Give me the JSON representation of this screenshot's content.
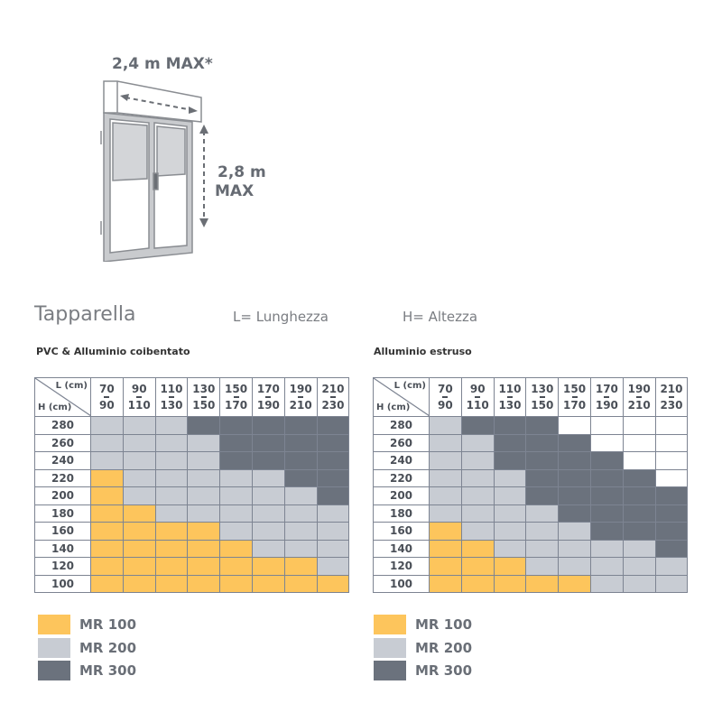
{
  "diagram": {
    "width_label": "2,4 m MAX*",
    "height_label_1": "2,8 m",
    "height_label_2": "MAX"
  },
  "title": "Tapparella",
  "l_def": "L= Lunghezza",
  "h_def": "H= Altezza",
  "colors": {
    "MR 100": "#fdc55c",
    "MR 200": "#c8ccd3",
    "MR 300": "#6b727d",
    "none": "#ffffff"
  },
  "columns": [
    [
      "70",
      "90"
    ],
    [
      "90",
      "110"
    ],
    [
      "110",
      "130"
    ],
    [
      "130",
      "150"
    ],
    [
      "150",
      "170"
    ],
    [
      "170",
      "190"
    ],
    [
      "190",
      "210"
    ],
    [
      "210",
      "230"
    ]
  ],
  "rows": [
    "280",
    "260",
    "240",
    "220",
    "200",
    "180",
    "160",
    "140",
    "120",
    "100"
  ],
  "corner": {
    "l": "L (cm)",
    "h": "H (cm)"
  },
  "tables": [
    {
      "title": "PVC & Alluminio coibentato",
      "grid": [
        [
          "MR 200",
          "MR 200",
          "MR 200",
          "MR 300",
          "MR 300",
          "MR 300",
          "MR 300",
          "MR 300"
        ],
        [
          "MR 200",
          "MR 200",
          "MR 200",
          "MR 200",
          "MR 300",
          "MR 300",
          "MR 300",
          "MR 300"
        ],
        [
          "MR 200",
          "MR 200",
          "MR 200",
          "MR 200",
          "MR 300",
          "MR 300",
          "MR 300",
          "MR 300"
        ],
        [
          "MR 100",
          "MR 200",
          "MR 200",
          "MR 200",
          "MR 200",
          "MR 200",
          "MR 300",
          "MR 300"
        ],
        [
          "MR 100",
          "MR 200",
          "MR 200",
          "MR 200",
          "MR 200",
          "MR 200",
          "MR 200",
          "MR 300"
        ],
        [
          "MR 100",
          "MR 100",
          "MR 200",
          "MR 200",
          "MR 200",
          "MR 200",
          "MR 200",
          "MR 200"
        ],
        [
          "MR 100",
          "MR 100",
          "MR 100",
          "MR 100",
          "MR 200",
          "MR 200",
          "MR 200",
          "MR 200"
        ],
        [
          "MR 100",
          "MR 100",
          "MR 100",
          "MR 100",
          "MR 100",
          "MR 200",
          "MR 200",
          "MR 200"
        ],
        [
          "MR 100",
          "MR 100",
          "MR 100",
          "MR 100",
          "MR 100",
          "MR 100",
          "MR 100",
          "MR 200"
        ],
        [
          "MR 100",
          "MR 100",
          "MR 100",
          "MR 100",
          "MR 100",
          "MR 100",
          "MR 100",
          "MR 100"
        ]
      ]
    },
    {
      "title": "Alluminio estruso",
      "grid": [
        [
          "MR 200",
          "MR 300",
          "MR 300",
          "MR 300",
          "none",
          "none",
          "none",
          "none"
        ],
        [
          "MR 200",
          "MR 200",
          "MR 300",
          "MR 300",
          "MR 300",
          "none",
          "none",
          "none"
        ],
        [
          "MR 200",
          "MR 200",
          "MR 300",
          "MR 300",
          "MR 300",
          "MR 300",
          "none",
          "none"
        ],
        [
          "MR 200",
          "MR 200",
          "MR 200",
          "MR 300",
          "MR 300",
          "MR 300",
          "MR 300",
          "none"
        ],
        [
          "MR 200",
          "MR 200",
          "MR 200",
          "MR 300",
          "MR 300",
          "MR 300",
          "MR 300",
          "MR 300"
        ],
        [
          "MR 200",
          "MR 200",
          "MR 200",
          "MR 200",
          "MR 300",
          "MR 300",
          "MR 300",
          "MR 300"
        ],
        [
          "MR 100",
          "MR 200",
          "MR 200",
          "MR 200",
          "MR 200",
          "MR 300",
          "MR 300",
          "MR 300"
        ],
        [
          "MR 100",
          "MR 100",
          "MR 200",
          "MR 200",
          "MR 200",
          "MR 200",
          "MR 200",
          "MR 300"
        ],
        [
          "MR 100",
          "MR 100",
          "MR 100",
          "MR 200",
          "MR 200",
          "MR 200",
          "MR 200",
          "MR 200"
        ],
        [
          "MR 100",
          "MR 100",
          "MR 100",
          "MR 100",
          "MR 100",
          "MR 200",
          "MR 200",
          "MR 200"
        ]
      ]
    }
  ],
  "legend": [
    "MR 100",
    "MR 200",
    "MR 300"
  ]
}
